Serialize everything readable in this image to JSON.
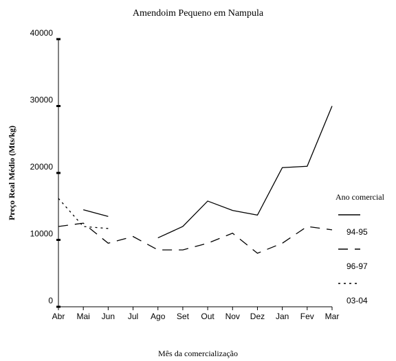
{
  "chart_data": {
    "type": "line",
    "title": "Amendoim Pequeno em Nampula",
    "x_label": "Mês da comercialização",
    "y_label": "Preço Real Médio (Mts/kg)",
    "legend_title": "Ano comercial",
    "legend": "right",
    "categories": [
      "Abr",
      "Mai",
      "Jun",
      "Jul",
      "Ago",
      "Set",
      "Out",
      "Nov",
      "Dez",
      "Jan",
      "Fev",
      "Mar"
    ],
    "series": [
      {
        "name": "94-95",
        "color": "#000000",
        "dash": "solid",
        "values": [
          null,
          14500,
          13500,
          null,
          10300,
          12000,
          15800,
          14400,
          13700,
          20800,
          21000,
          30000
        ]
      },
      {
        "name": "96-97",
        "color": "#000000",
        "dash": "dashed",
        "values": [
          12000,
          12500,
          9500,
          10500,
          8500,
          8500,
          9500,
          11000,
          8000,
          9500,
          12000,
          11500
        ]
      },
      {
        "name": "03-04",
        "color": "#000000",
        "dash": "dotted",
        "values": [
          16200,
          12000,
          11700,
          null,
          null,
          null,
          null,
          null,
          null,
          null,
          null,
          null
        ]
      }
    ],
    "ylim": [
      0,
      40000
    ],
    "yticks": [
      0,
      10000,
      20000,
      30000,
      40000
    ]
  }
}
